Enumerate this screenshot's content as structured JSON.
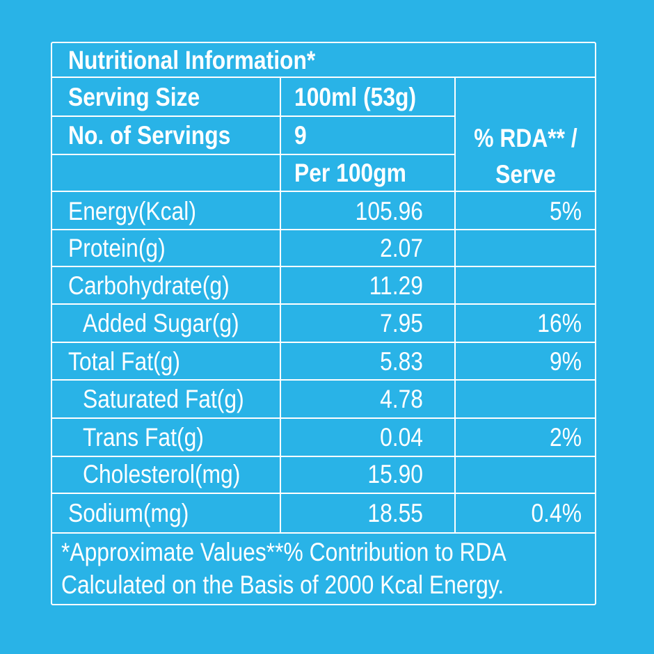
{
  "title": "Nutritional Information*",
  "serving_size": {
    "label": "Serving Size",
    "value": "100ml (53g)"
  },
  "servings": {
    "label": "No. of Servings",
    "value": "9"
  },
  "col_per": "Per 100gm",
  "col_rda_line1": "% RDA** /",
  "col_rda_line2": "Serve",
  "rows": [
    {
      "label": "Energy(Kcal)",
      "value": "105.96",
      "rda": "5%"
    },
    {
      "label": "Protein(g)",
      "value": "2.07",
      "rda": ""
    },
    {
      "label": "Carbohydrate(g)",
      "value": "11.29",
      "rda": ""
    },
    {
      "label": "Added Sugar(g)",
      "value": "7.95",
      "rda": "16%"
    },
    {
      "label": "Total Fat(g)",
      "value": "5.83",
      "rda": "9%"
    },
    {
      "label": "Saturated Fat(g)",
      "value": "4.78",
      "rda": ""
    },
    {
      "label": "Trans Fat(g)",
      "value": "0.04",
      "rda": "2%"
    },
    {
      "label": "Cholesterol(mg)",
      "value": "15.90",
      "rda": ""
    },
    {
      "label": "Sodium(mg)",
      "value": "18.55",
      "rda": "0.4%"
    }
  ],
  "footnote_line1": "*Approximate Values**% Contribution to RDA",
  "footnote_line2": "Calculated on the Basis of 2000 Kcal Energy.",
  "colors": {
    "background": "#29b3e7",
    "foreground": "#ffffff"
  }
}
